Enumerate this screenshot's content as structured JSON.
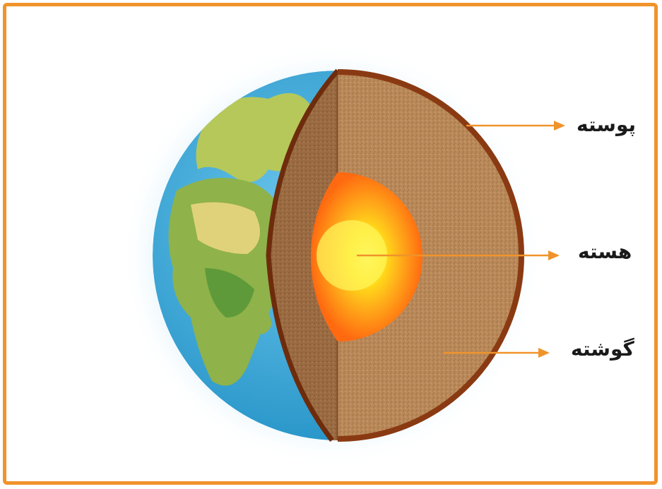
{
  "labels": {
    "crust": "پوسته",
    "core": "هسته",
    "mantle": "گوشته"
  },
  "colors": {
    "frame": "#f0932b",
    "arrow": "#f0932b",
    "crust": "#8a3a12",
    "mantle": "#b9895a",
    "ocean": "#3aa9d8",
    "land": "#9bbf4a",
    "inner_core": "#fff23a",
    "outer_core": "#ff7a1a"
  },
  "icons": [
    "earth-cross-section-illustration",
    "arrow-right-icon"
  ]
}
